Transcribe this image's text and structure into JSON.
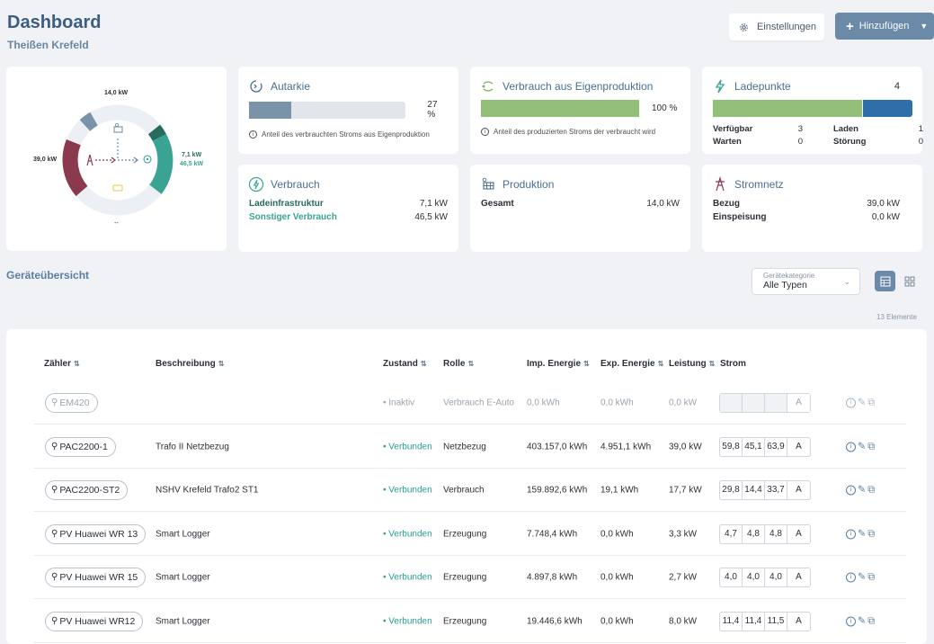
{
  "header": {
    "title": "Dashboard",
    "subtitle": "Theißen Krefeld",
    "settings_label": "Einstellungen",
    "add_label": "Hinzufügen"
  },
  "flow": {
    "top_kw": "14,0 kW",
    "left_kw": "39,0 kW",
    "right_kw1": "7,1 kW",
    "right_kw2": "46,5 kW",
    "bottom": "--"
  },
  "autarkie": {
    "title": "Autarkie",
    "percent": "27 %",
    "fraction": 0.27,
    "note": "Anteil des verbrauchten Stroms aus Eigenproduktion"
  },
  "eigenproduktion": {
    "title": "Verbrauch aus Eigenproduktion",
    "percent": "100 %",
    "fraction": 1.0,
    "note": "Anteil des produzierten Stroms der verbraucht wird"
  },
  "ladepunkte": {
    "title": "Ladepunkte",
    "count": "4",
    "available_fraction": 0.75,
    "items": {
      "verfuegbar_label": "Verfügbar",
      "verfuegbar": "3",
      "laden_label": "Laden",
      "laden": "1",
      "warten_label": "Warten",
      "warten": "0",
      "stoerung_label": "Störung",
      "stoerung": "0"
    }
  },
  "verbrauch": {
    "title": "Verbrauch",
    "row1_label": "Ladeinfrastruktur",
    "row1_value": "7,1 kW",
    "row2_label": "Sonstiger Verbrauch",
    "row2_value": "46,5 kW"
  },
  "produktion": {
    "title": "Produktion",
    "row1_label": "Gesamt",
    "row1_value": "14,0 kW"
  },
  "stromnetz": {
    "title": "Stromnetz",
    "row1_label": "Bezug",
    "row1_value": "39,0 kW",
    "row2_label": "Einspeisung",
    "row2_value": "0,0 kW"
  },
  "overview": {
    "title": "Geräteübersicht",
    "filter_label": "Gerätekategorie",
    "filter_value": "Alle Typen",
    "count": "13 Elemente"
  },
  "table": {
    "headers": {
      "zaehler": "Zähler",
      "beschreibung": "Beschreibung",
      "zustand": "Zustand",
      "rolle": "Rolle",
      "imp": "Imp. Energie",
      "exp": "Exp. Energie",
      "leistung": "Leistung",
      "strom": "Strom"
    },
    "rows": [
      {
        "name": "EM420",
        "desc": "",
        "state": "• Inaktiv",
        "role": "Verbrauch E-Auto",
        "imp": "0,0 kWh",
        "exp": "0,0 kWh",
        "power": "0,0 kW",
        "a1": "",
        "a2": "",
        "a3": "",
        "unit": "A"
      },
      {
        "name": "PAC2200-1",
        "desc": "Trafo II Netzbezug",
        "state": "• Verbunden",
        "role": "Netzbezug",
        "imp": "403.157,0 kWh",
        "exp": "4.951,1 kWh",
        "power": "39,0 kW",
        "a1": "59,8",
        "a2": "45,1",
        "a3": "63,9",
        "unit": "A"
      },
      {
        "name": "PAC2200-ST2",
        "desc": "NSHV Krefeld Trafo2 ST1",
        "state": "• Verbunden",
        "role": "Verbrauch",
        "imp": "159.892,6 kWh",
        "exp": "19,1 kWh",
        "power": "17,7 kW",
        "a1": "29,8",
        "a2": "14,4",
        "a3": "33,7",
        "unit": "A"
      },
      {
        "name": "PV Huawei WR 13",
        "desc": "Smart Logger",
        "state": "• Verbunden",
        "role": "Erzeugung",
        "imp": "7.748,4 kWh",
        "exp": "0,0 kWh",
        "power": "3,3 kW",
        "a1": "4,7",
        "a2": "4,8",
        "a3": "4,8",
        "unit": "A"
      },
      {
        "name": "PV Huawei WR 15",
        "desc": "Smart Logger",
        "state": "• Verbunden",
        "role": "Erzeugung",
        "imp": "4.897,8 kWh",
        "exp": "0,0 kWh",
        "power": "2,7 kW",
        "a1": "4,0",
        "a2": "4,0",
        "a3": "4,0",
        "unit": "A"
      },
      {
        "name": "PV Huawei WR12",
        "desc": "Smart Logger",
        "state": "• Verbunden",
        "role": "Erzeugung",
        "imp": "19.446,6 kWh",
        "exp": "0,0 kWh",
        "power": "8,0 kW",
        "a1": "11,4",
        "a2": "11,4",
        "a3": "11,5",
        "unit": "A"
      }
    ]
  }
}
